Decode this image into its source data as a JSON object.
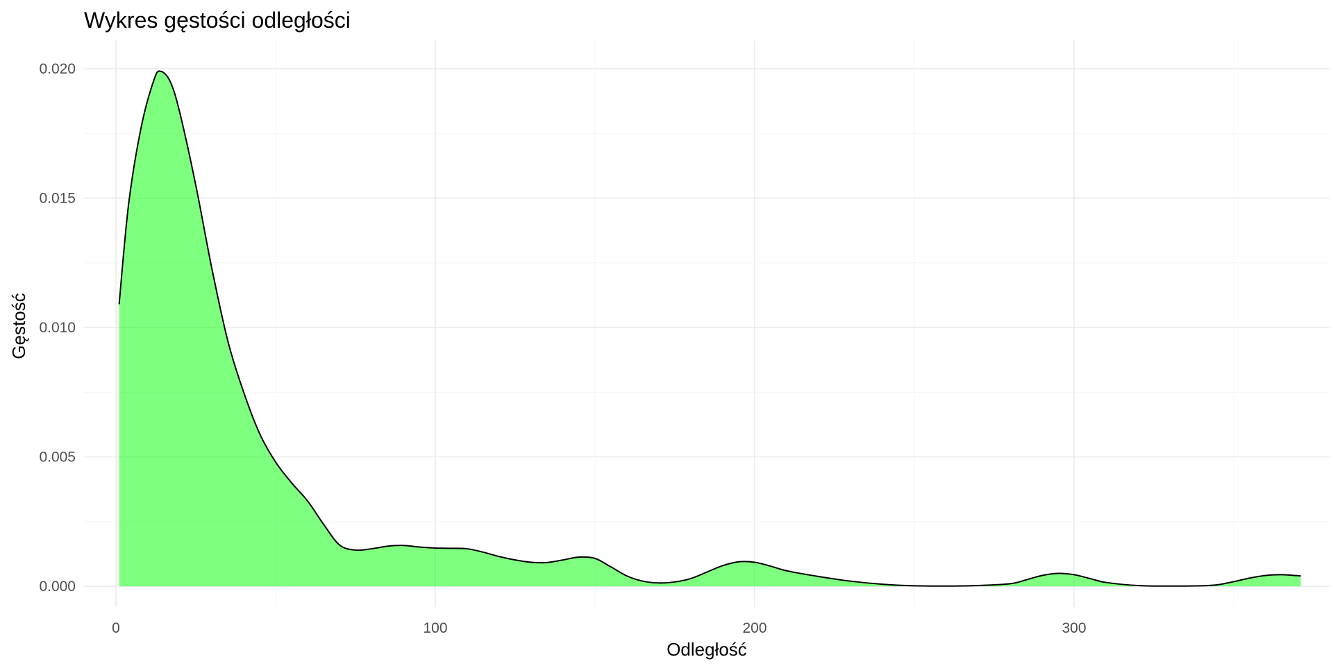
{
  "chart_data": {
    "type": "area",
    "title": "Wykres gęstości odległości",
    "xlabel": "Odległość",
    "ylabel": "Gęstość",
    "xlim": [
      -10,
      380
    ],
    "ylim": [
      -0.0008,
      0.0211
    ],
    "x_ticks": [
      {
        "value": 0,
        "label": "0"
      },
      {
        "value": 100,
        "label": "100"
      },
      {
        "value": 200,
        "label": "200"
      },
      {
        "value": 300,
        "label": "300"
      }
    ],
    "x_minor_ticks": [
      50,
      150,
      250,
      350
    ],
    "y_ticks": [
      {
        "value": 0.0,
        "label": "0.000"
      },
      {
        "value": 0.005,
        "label": "0.005"
      },
      {
        "value": 0.01,
        "label": "0.010"
      },
      {
        "value": 0.015,
        "label": "0.015"
      },
      {
        "value": 0.02,
        "label": "0.020"
      }
    ],
    "y_minor_ticks": [
      0.0025,
      0.0075,
      0.0125,
      0.0175
    ],
    "grid": true,
    "legend": "none",
    "colors": {
      "fill": "#00ff00",
      "fill_opacity": 0.5,
      "line": "#000000"
    },
    "series": [
      {
        "x": [
          1,
          4,
          8,
          12,
          14,
          17,
          20,
          25,
          30,
          35,
          40,
          45,
          50,
          55,
          60,
          65,
          70,
          75,
          80,
          85,
          90,
          95,
          100,
          105,
          110,
          115,
          120,
          125,
          130,
          135,
          140,
          145,
          150,
          155,
          160,
          165,
          170,
          175,
          180,
          185,
          190,
          195,
          200,
          205,
          210,
          220,
          230,
          240,
          250,
          260,
          270,
          280,
          285,
          290,
          295,
          300,
          305,
          310,
          320,
          330,
          340,
          345,
          350,
          355,
          360,
          365,
          371
        ],
        "y": [
          0.0109,
          0.0148,
          0.0178,
          0.0196,
          0.0199,
          0.0195,
          0.0183,
          0.0155,
          0.0123,
          0.0095,
          0.0075,
          0.0059,
          0.0048,
          0.004,
          0.0033,
          0.0024,
          0.0016,
          0.0014,
          0.00145,
          0.00155,
          0.00158,
          0.00152,
          0.00148,
          0.00147,
          0.00145,
          0.00132,
          0.00115,
          0.00102,
          0.00093,
          0.00092,
          0.00102,
          0.00113,
          0.00108,
          0.00075,
          0.0004,
          0.0002,
          0.00013,
          0.00017,
          0.0003,
          0.00055,
          0.0008,
          0.00095,
          0.00093,
          0.00078,
          0.0006,
          0.00038,
          0.0002,
          8e-05,
          2e-05,
          1e-05,
          3e-05,
          0.0001,
          0.00025,
          0.00042,
          0.0005,
          0.00045,
          0.0003,
          0.00015,
          3e-05,
          1e-05,
          2e-05,
          6e-05,
          0.00018,
          0.00032,
          0.00042,
          0.00045,
          0.0004
        ]
      }
    ]
  }
}
